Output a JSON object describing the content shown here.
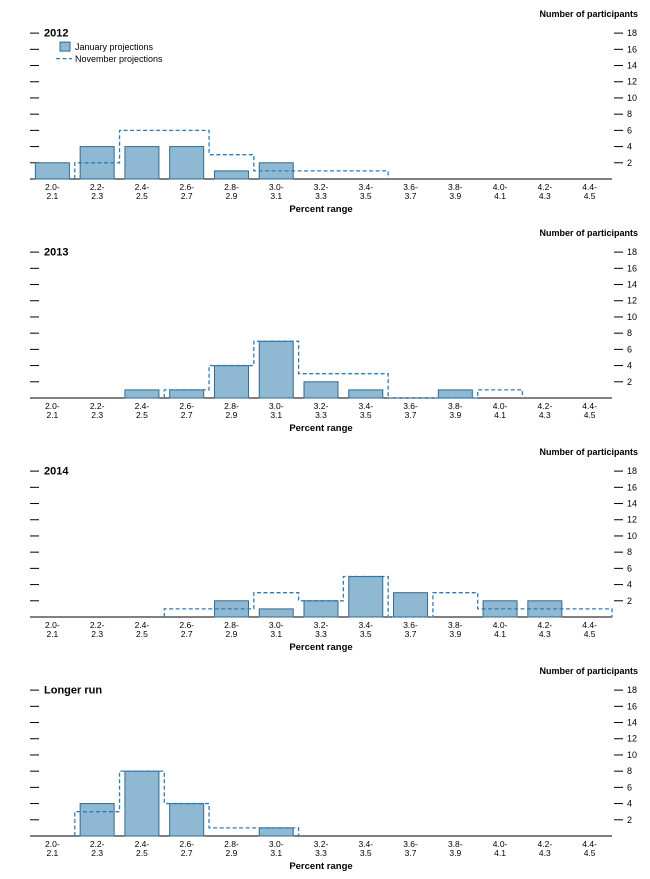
{
  "figure_header": "Number of participants",
  "x_axis_title": "Percent range",
  "legend": {
    "january_label": "January projections",
    "november_label": "November projections",
    "position": "top-left"
  },
  "colors": {
    "bar_fill": "#8fb8d2",
    "bar_stroke": "#34688f",
    "dash_line": "#2e7cb5",
    "axis": "#000000"
  },
  "y_ticks": [
    2,
    4,
    6,
    8,
    10,
    12,
    14,
    16,
    18
  ],
  "y_max": 19,
  "chart_data": [
    {
      "type": "bar",
      "title": "2012",
      "xlabel": "Percent range",
      "ylabel": "Number of participants",
      "ylim": [
        0,
        19
      ],
      "y_axis_side": "right",
      "categories": [
        "2.0-2.1",
        "2.2-2.3",
        "2.4-2.5",
        "2.6-2.7",
        "2.8-2.9",
        "3.0-3.1",
        "3.2-3.3",
        "3.4-3.5",
        "3.6-3.7",
        "3.8-3.9",
        "4.0-4.1",
        "4.2-4.3",
        "4.4-4.5"
      ],
      "series": [
        {
          "name": "January projections",
          "style": "bar",
          "values": [
            2,
            4,
            4,
            4,
            1,
            2,
            0,
            0,
            0,
            0,
            0,
            0,
            0
          ]
        },
        {
          "name": "November projections",
          "style": "dashed-step",
          "values": [
            0,
            2,
            6,
            6,
            3,
            1,
            1,
            1,
            0,
            0,
            0,
            0,
            0
          ]
        }
      ]
    },
    {
      "type": "bar",
      "title": "2013",
      "xlabel": "Percent range",
      "ylabel": "Number of participants",
      "ylim": [
        0,
        19
      ],
      "y_axis_side": "right",
      "categories": [
        "2.0-2.1",
        "2.2-2.3",
        "2.4-2.5",
        "2.6-2.7",
        "2.8-2.9",
        "3.0-3.1",
        "3.2-3.3",
        "3.4-3.5",
        "3.6-3.7",
        "3.8-3.9",
        "4.0-4.1",
        "4.2-4.3",
        "4.4-4.5"
      ],
      "series": [
        {
          "name": "January projections",
          "style": "bar",
          "values": [
            0,
            0,
            1,
            1,
            4,
            7,
            2,
            1,
            0,
            1,
            0,
            0,
            0
          ]
        },
        {
          "name": "November projections",
          "style": "dashed-step",
          "values": [
            0,
            0,
            0,
            1,
            4,
            7,
            3,
            3,
            0,
            0,
            1,
            0,
            0
          ]
        }
      ]
    },
    {
      "type": "bar",
      "title": "2014",
      "xlabel": "Percent range",
      "ylabel": "Number of participants",
      "ylim": [
        0,
        19
      ],
      "y_axis_side": "right",
      "categories": [
        "2.0-2.1",
        "2.2-2.3",
        "2.4-2.5",
        "2.6-2.7",
        "2.8-2.9",
        "3.0-3.1",
        "3.2-3.3",
        "3.4-3.5",
        "3.6-3.7",
        "3.8-3.9",
        "4.0-4.1",
        "4.2-4.3",
        "4.4-4.5"
      ],
      "series": [
        {
          "name": "January projections",
          "style": "bar",
          "values": [
            0,
            0,
            0,
            0,
            2,
            1,
            2,
            5,
            3,
            0,
            2,
            2,
            0
          ]
        },
        {
          "name": "November projections",
          "style": "dashed-step",
          "values": [
            0,
            0,
            0,
            1,
            1,
            3,
            2,
            5,
            0,
            3,
            1,
            1,
            1
          ]
        }
      ]
    },
    {
      "type": "bar",
      "title": "Longer run",
      "xlabel": "Percent range",
      "ylabel": "Number of participants",
      "ylim": [
        0,
        19
      ],
      "y_axis_side": "right",
      "categories": [
        "2.0-2.1",
        "2.2-2.3",
        "2.4-2.5",
        "2.6-2.7",
        "2.8-2.9",
        "3.0-3.1",
        "3.2-3.3",
        "3.4-3.5",
        "3.6-3.7",
        "3.8-3.9",
        "4.0-4.1",
        "4.2-4.3",
        "4.4-4.5"
      ],
      "series": [
        {
          "name": "January projections",
          "style": "bar",
          "values": [
            0,
            4,
            8,
            4,
            0,
            1,
            0,
            0,
            0,
            0,
            0,
            0,
            0
          ]
        },
        {
          "name": "November projections",
          "style": "dashed-step",
          "values": [
            0,
            3,
            8,
            4,
            1,
            1,
            0,
            0,
            0,
            0,
            0,
            0,
            0
          ]
        }
      ]
    }
  ]
}
